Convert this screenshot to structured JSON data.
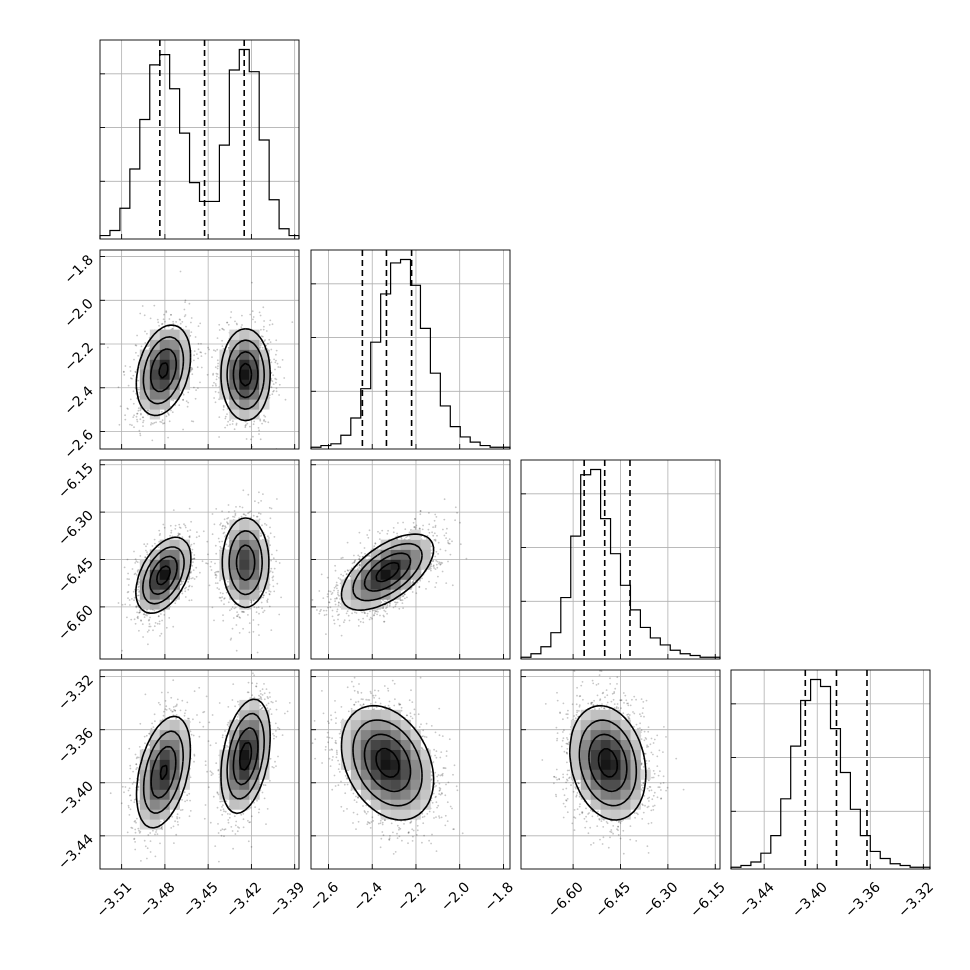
{
  "chart_data": {
    "type": "corner",
    "grid": true,
    "params": [
      {
        "id": "p0",
        "range": [
          -3.525,
          -3.387
        ],
        "ticks": [
          -3.51,
          -3.48,
          -3.45,
          -3.42,
          -3.39
        ],
        "tick_labels": [
          "−3.51",
          "−3.48",
          "−3.45",
          "−3.42",
          "−3.39"
        ],
        "quantiles": [
          -3.4835,
          -3.4525,
          -3.425
        ],
        "hist_counts": [
          2,
          5,
          18,
          41,
          70,
          102,
          108,
          88,
          62,
          33,
          22,
          22,
          55,
          99,
          111,
          98,
          58,
          23,
          6,
          2
        ],
        "modes": [
          {
            "mean": -3.481,
            "sd": 0.0095,
            "w": 0.5
          },
          {
            "mean": -3.424,
            "sd": 0.0085,
            "w": 0.5
          }
        ]
      },
      {
        "id": "p1",
        "range": [
          -2.68,
          -1.77
        ],
        "ticks": [
          -2.6,
          -2.4,
          -2.2,
          -2.0,
          -1.8
        ],
        "tick_labels": [
          "−2.6",
          "−2.4",
          "−2.2",
          "−2.0",
          "−1.8"
        ],
        "quantiles": [
          -2.445,
          -2.335,
          -2.22
        ],
        "hist_counts": [
          1,
          2,
          3,
          8,
          18,
          35,
          62,
          90,
          108,
          110,
          95,
          70,
          44,
          25,
          13,
          7,
          4,
          2,
          1,
          1
        ],
        "modes": [
          {
            "mean": -2.33,
            "sd": 0.105,
            "w": 1
          }
        ]
      },
      {
        "id": "p2",
        "range": [
          -6.765,
          -6.135
        ],
        "ticks": [
          -6.6,
          -6.45,
          -6.3,
          -6.15
        ],
        "tick_labels": [
          "−6.60",
          "−6.45",
          "−6.30",
          "−6.15"
        ],
        "quantiles": [
          -6.565,
          -6.5,
          -6.42
        ],
        "hist_counts": [
          1,
          3,
          7,
          15,
          35,
          70,
          105,
          108,
          80,
          60,
          42,
          28,
          18,
          12,
          8,
          5,
          3,
          2,
          1,
          1
        ],
        "modes": [
          {
            "mean": -6.49,
            "sd": 0.06,
            "w": 1
          }
        ]
      },
      {
        "id": "p3",
        "range": [
          -3.465,
          -3.315
        ],
        "ticks": [
          -3.44,
          -3.4,
          -3.36,
          -3.32
        ],
        "tick_labels": [
          "−3.44",
          "−3.40",
          "−3.36",
          "−3.32"
        ],
        "quantiles": [
          -3.409,
          -3.3855,
          -3.3625
        ],
        "hist_counts": [
          1,
          2,
          4,
          9,
          19,
          40,
          70,
          96,
          108,
          104,
          80,
          55,
          34,
          19,
          10,
          6,
          3,
          2,
          1,
          1
        ],
        "modes": [
          {
            "mean": -3.385,
            "sd": 0.0215,
            "w": 1
          }
        ]
      }
    ],
    "pairs": [
      {
        "row": 1,
        "col": 0,
        "clusters": [
          {
            "mx": -3.481,
            "my": -2.32,
            "sx": 0.0095,
            "sy": 0.105,
            "rho": 0.3,
            "w": 0.5
          },
          {
            "mx": -3.424,
            "my": -2.34,
            "sx": 0.0085,
            "sy": 0.105,
            "rho": 0.0,
            "w": 0.5
          }
        ]
      },
      {
        "row": 2,
        "col": 0,
        "clusters": [
          {
            "mx": -3.481,
            "my": -6.5,
            "sx": 0.0095,
            "sy": 0.06,
            "rho": 0.45,
            "w": 0.5
          },
          {
            "mx": -3.424,
            "my": -6.46,
            "sx": 0.0085,
            "sy": 0.075,
            "rho": 0.0,
            "w": 0.5
          }
        ]
      },
      {
        "row": 2,
        "col": 1,
        "clusters": [
          {
            "mx": -2.33,
            "my": -6.49,
            "sx": 0.105,
            "sy": 0.06,
            "rho": 0.6,
            "w": 1
          }
        ]
      },
      {
        "row": 3,
        "col": 0,
        "clusters": [
          {
            "mx": -3.481,
            "my": -3.392,
            "sx": 0.0095,
            "sy": 0.0215,
            "rho": 0.4,
            "w": 0.5
          },
          {
            "mx": -3.424,
            "my": -3.38,
            "sx": 0.0085,
            "sy": 0.0215,
            "rho": 0.35,
            "w": 0.5
          }
        ]
      },
      {
        "row": 3,
        "col": 1,
        "clusters": [
          {
            "mx": -2.33,
            "my": -3.385,
            "sx": 0.105,
            "sy": 0.0215,
            "rho": -0.3,
            "w": 1
          }
        ]
      },
      {
        "row": 3,
        "col": 2,
        "clusters": [
          {
            "mx": -6.49,
            "my": -3.385,
            "sx": 0.06,
            "sy": 0.0215,
            "rho": -0.2,
            "w": 1
          }
        ]
      }
    ],
    "contour_levels_sigma": [
      0.5,
      1.0,
      1.5,
      2.0
    ]
  }
}
